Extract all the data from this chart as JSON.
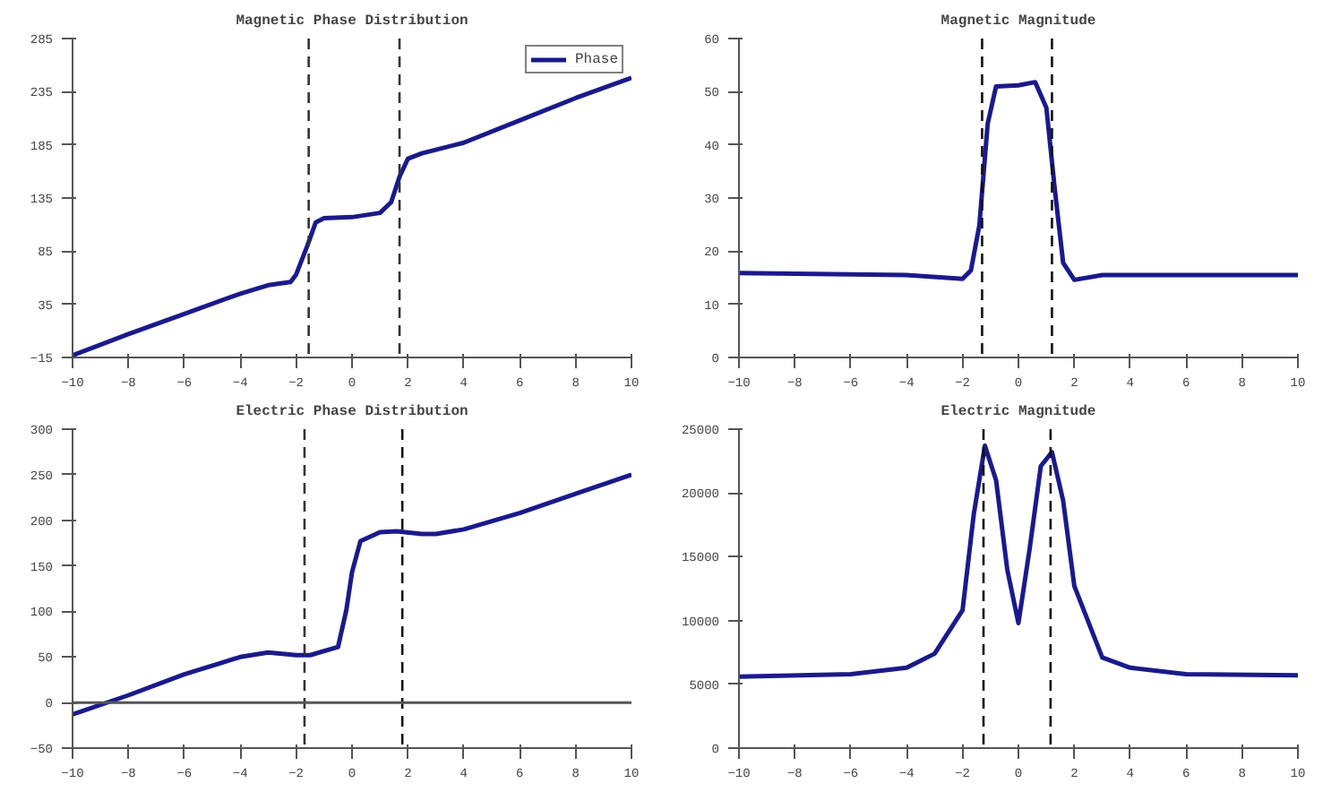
{
  "chart_data": [
    {
      "type": "line",
      "title": "Magnetic Phase Distribution",
      "legend": "top right",
      "xlim": [
        -10,
        10
      ],
      "ylim": [
        -15,
        285
      ],
      "xticks": [
        -10,
        -8,
        -6,
        -4,
        -2,
        0,
        2,
        4,
        6,
        8,
        10
      ],
      "yticks": [
        -15,
        35,
        85,
        135,
        185,
        235,
        285
      ],
      "x": [
        -10,
        -8,
        -6,
        -4,
        -3,
        -2.2,
        -2,
        -1.6,
        -1.3,
        -1,
        0,
        1,
        1.4,
        1.7,
        2,
        2.5,
        4,
        6,
        8,
        10
      ],
      "series": [
        {
          "name": "Phase",
          "color": "#1a1a8c",
          "values": [
            -13,
            7,
            26,
            45,
            53,
            56,
            63,
            90,
            112,
            116,
            117,
            121,
            131,
            155,
            172,
            177,
            187,
            208,
            229,
            248
          ]
        }
      ],
      "ref_lines": [
        {
          "axis": "x",
          "value": -1.55,
          "line_style": "dashed",
          "color": "#333333"
        },
        {
          "axis": "x",
          "value": 1.7,
          "line_style": "dashed",
          "color": "#333333"
        }
      ]
    },
    {
      "type": "line",
      "title": "Magnetic Magnitude",
      "xlim": [
        -10,
        10
      ],
      "ylim": [
        0,
        60
      ],
      "xticks": [
        -10,
        -8,
        -6,
        -4,
        -2,
        0,
        2,
        4,
        6,
        8,
        10
      ],
      "yticks": [
        0,
        10,
        20,
        30,
        40,
        50,
        60
      ],
      "x": [
        -10,
        -4,
        -2,
        -1.7,
        -1.4,
        -1.1,
        -0.8,
        0,
        0.6,
        1,
        1.3,
        1.6,
        2,
        3,
        10
      ],
      "series": [
        {
          "color": "#1a1a8c",
          "values": [
            15.9,
            15.5,
            14.8,
            16.4,
            24.8,
            44,
            51,
            51.2,
            51.8,
            47,
            31.7,
            17.8,
            14.6,
            15.5,
            15.5
          ]
        }
      ],
      "ref_lines": [
        {
          "axis": "x",
          "value": -1.3,
          "line_style": "dashed",
          "color": "#111111"
        },
        {
          "axis": "x",
          "value": 1.2,
          "line_style": "dashed",
          "color": "#111111"
        }
      ]
    },
    {
      "type": "line",
      "title": "Electric Phase Distribution",
      "xlim": [
        -10,
        10
      ],
      "ylim": [
        -50,
        300
      ],
      "xticks": [
        -10,
        -8,
        -6,
        -4,
        -2,
        0,
        2,
        4,
        6,
        8,
        10
      ],
      "yticks": [
        -50,
        0,
        50,
        100,
        150,
        200,
        250,
        300
      ],
      "x": [
        -10,
        -8,
        -6,
        -4,
        -3,
        -2,
        -1.5,
        -0.5,
        -0.2,
        0,
        0.3,
        1,
        1.6,
        2.5,
        3,
        4,
        6,
        8,
        10
      ],
      "series": [
        {
          "color": "#1a1a8c",
          "values": [
            -13,
            8,
            31,
            50,
            55,
            52,
            52,
            61,
            102,
            143,
            177,
            187,
            188,
            185,
            185,
            190,
            208,
            229,
            250
          ]
        }
      ],
      "ref_lines": [
        {
          "axis": "x",
          "value": -1.7,
          "line_style": "dashed",
          "color": "#333333"
        },
        {
          "axis": "x",
          "value": 1.8,
          "line_style": "dashed",
          "color": "#111111"
        },
        {
          "axis": "y",
          "value": 0,
          "line_style": "solid",
          "color": "#555555"
        }
      ]
    },
    {
      "type": "line",
      "title": "Electric Magnitude",
      "xlim": [
        -10,
        10
      ],
      "ylim": [
        0,
        25000
      ],
      "xticks": [
        -10,
        -8,
        -6,
        -4,
        -2,
        0,
        2,
        4,
        6,
        8,
        10
      ],
      "yticks": [
        0,
        5000,
        10000,
        15000,
        20000,
        25000
      ],
      "x": [
        -10,
        -6,
        -4,
        -3,
        -2,
        -1.6,
        -1.2,
        -0.8,
        -0.4,
        0,
        0.4,
        0.8,
        1.2,
        1.6,
        2,
        3,
        4,
        6,
        10
      ],
      "series": [
        {
          "color": "#1a1a8c",
          "values": [
            5600,
            5800,
            6300,
            7400,
            10800,
            18300,
            23700,
            21000,
            14000,
            9800,
            15600,
            22100,
            23200,
            19400,
            12700,
            7100,
            6300,
            5800,
            5700
          ]
        }
      ],
      "ref_lines": [
        {
          "axis": "x",
          "value": -1.25,
          "line_style": "dashed",
          "color": "#111111"
        },
        {
          "axis": "x",
          "value": 1.15,
          "line_style": "dashed",
          "color": "#111111"
        }
      ]
    }
  ]
}
